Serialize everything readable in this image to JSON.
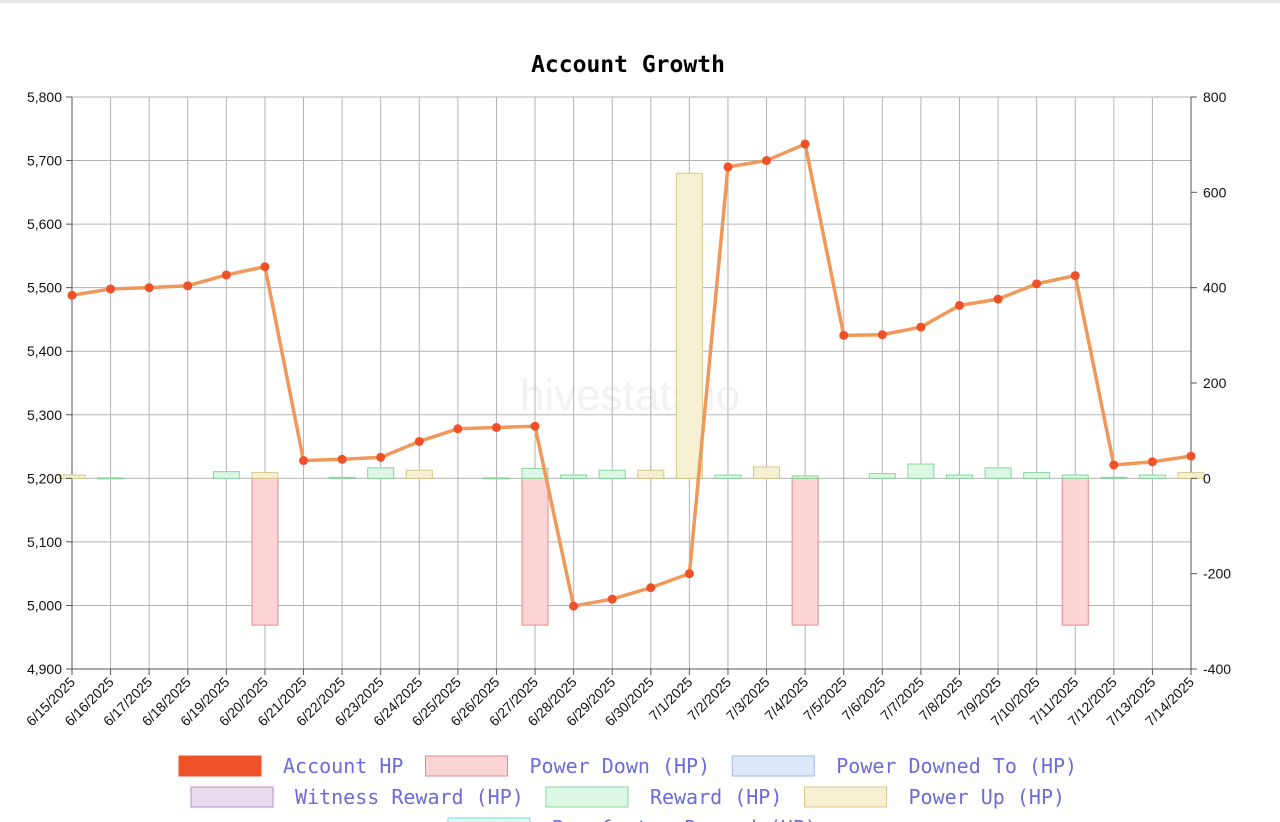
{
  "chart_data": {
    "type": "line",
    "title": "Account Growth",
    "watermark": "hivestats.io",
    "categories": [
      "6/15/2025",
      "6/16/2025",
      "6/17/2025",
      "6/18/2025",
      "6/19/2025",
      "6/20/2025",
      "6/21/2025",
      "6/22/2025",
      "6/23/2025",
      "6/24/2025",
      "6/25/2025",
      "6/26/2025",
      "6/27/2025",
      "6/28/2025",
      "6/29/2025",
      "6/30/2025",
      "7/1/2025",
      "7/2/2025",
      "7/3/2025",
      "7/4/2025",
      "7/5/2025",
      "7/6/2025",
      "7/7/2025",
      "7/8/2025",
      "7/9/2025",
      "7/10/2025",
      "7/11/2025",
      "7/12/2025",
      "7/13/2025",
      "7/14/2025"
    ],
    "y_left": {
      "ylim": [
        4900,
        5800
      ],
      "ticks": [
        "4,900",
        "5,000",
        "5,100",
        "5,200",
        "5,300",
        "5,400",
        "5,500",
        "5,600",
        "5,700",
        "5,800"
      ],
      "tick_values": [
        4900,
        5000,
        5100,
        5200,
        5300,
        5400,
        5500,
        5600,
        5700,
        5800
      ]
    },
    "y_right": {
      "ylim": [
        -400,
        800
      ],
      "ticks": [
        "-400",
        "-200",
        "0",
        "200",
        "400",
        "600",
        "800"
      ],
      "tick_values": [
        -400,
        -200,
        0,
        200,
        400,
        600,
        800
      ]
    },
    "grid": true,
    "legend_position": "bottom",
    "series": [
      {
        "name": "Account HP",
        "kind": "line",
        "axis": "left",
        "color": "#f05028",
        "line_color": "#f0975a",
        "values": [
          5488,
          5498,
          5500,
          5503,
          5520,
          5533,
          5228,
          5230,
          5233,
          5258,
          5278,
          5280,
          5282,
          4999,
          5010,
          5028,
          5050,
          5690,
          5700,
          5726,
          5425,
          5426,
          5438,
          5472,
          5482,
          5506,
          5519,
          5221,
          5226,
          5235
        ]
      },
      {
        "name": "Power Down (HP)",
        "kind": "bar",
        "axis": "right",
        "color": "#fbd5d5",
        "border": "#e98a8a",
        "values": [
          0,
          0,
          0,
          0,
          0,
          -308,
          0,
          0,
          0,
          0,
          0,
          0,
          -308,
          0,
          0,
          0,
          0,
          0,
          0,
          -308,
          0,
          0,
          0,
          0,
          0,
          0,
          -308,
          0,
          0,
          0
        ]
      },
      {
        "name": "Power Downed To (HP)",
        "kind": "bar",
        "axis": "right",
        "color": "#dde9fb",
        "border": "#9dbbe8",
        "values": [
          0,
          0,
          0,
          0,
          0,
          0,
          0,
          0,
          0,
          0,
          0,
          0,
          0,
          0,
          0,
          0,
          0,
          0,
          0,
          0,
          0,
          0,
          0,
          0,
          0,
          0,
          0,
          0,
          0,
          0
        ]
      },
      {
        "name": "Witness Reward (HP)",
        "kind": "bar",
        "axis": "right",
        "color": "#e8dcef",
        "border": "#b58fc9",
        "values": [
          0,
          0,
          0,
          0,
          0,
          0,
          0,
          0,
          0,
          0,
          0,
          0,
          0,
          0,
          0,
          0,
          0,
          0,
          0,
          0,
          0,
          0,
          0,
          0,
          0,
          0,
          0,
          0,
          0,
          0
        ]
      },
      {
        "name": "Reward (HP)",
        "kind": "bar",
        "axis": "right",
        "color": "#dcf7e3",
        "border": "#86d69c",
        "values": [
          4,
          1,
          0,
          0,
          14,
          0,
          0,
          2,
          22,
          10,
          0,
          1,
          21,
          7,
          17,
          7,
          7,
          7,
          7,
          5,
          0,
          10,
          30,
          7,
          22,
          12,
          7,
          2,
          7,
          0
        ]
      },
      {
        "name": "Power Up (HP)",
        "kind": "bar",
        "axis": "right",
        "color": "#f6f0d3",
        "border": "#d8c98a",
        "values": [
          7,
          0,
          0,
          0,
          0,
          12,
          0,
          0,
          0,
          17,
          0,
          0,
          0,
          0,
          0,
          17,
          640,
          0,
          24,
          0,
          0,
          0,
          0,
          0,
          0,
          0,
          0,
          0,
          0,
          12
        ]
      },
      {
        "name": "Benefactor Reward (HP)",
        "kind": "bar",
        "axis": "right",
        "color": "#dcf7f4",
        "border": "#8ed8cf",
        "values": [
          0,
          0,
          0,
          0,
          0,
          0,
          0,
          0,
          0,
          0,
          0,
          0,
          0,
          0,
          0,
          0,
          0,
          0,
          0,
          0,
          0,
          0,
          0,
          0,
          0,
          0,
          0,
          0,
          0,
          0
        ]
      }
    ]
  }
}
